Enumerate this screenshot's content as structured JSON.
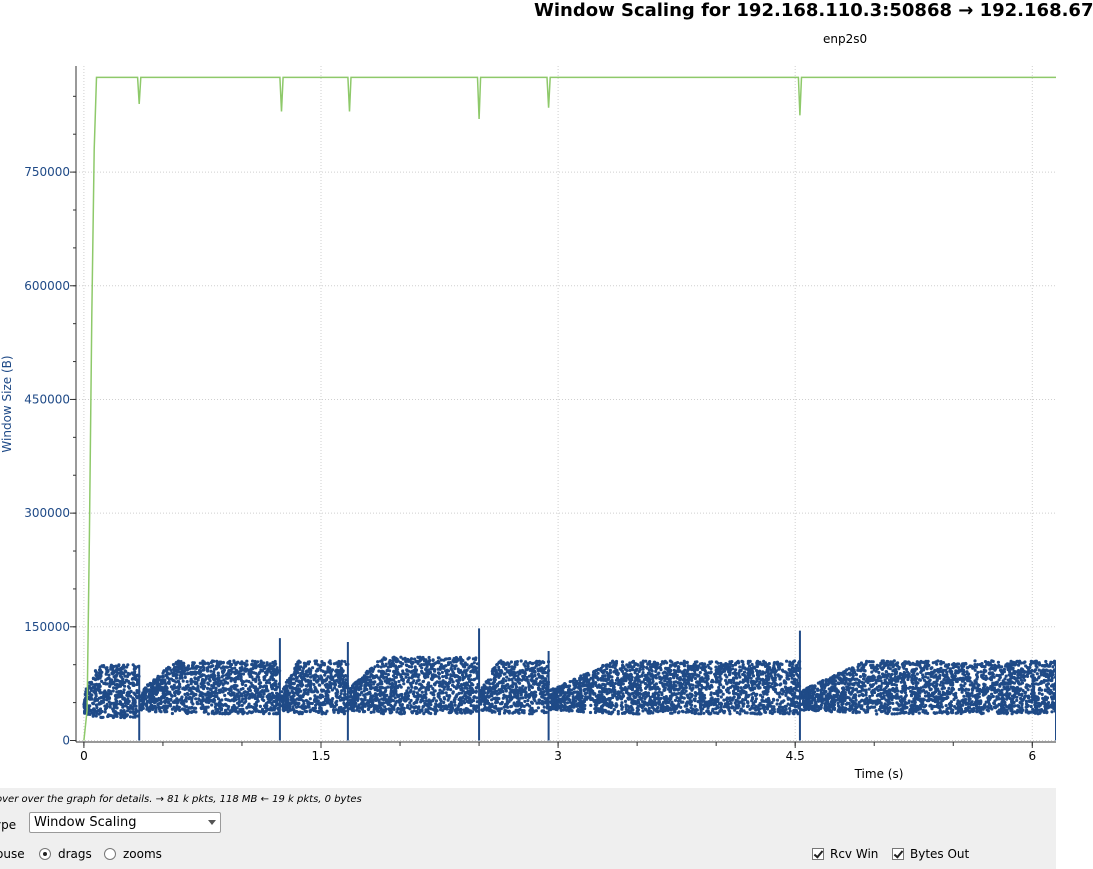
{
  "header": {
    "title": "Window Scaling for 192.168.110.3:50868 → 192.168.67",
    "subtitle": "enp2s0"
  },
  "chart_data": {
    "type": "scatter",
    "title": "Window Scaling for 192.168.110.3:50868 → 192.168.67",
    "subtitle": "enp2s0",
    "xlabel": "Time (s)",
    "ylabel": "Window Size (B)",
    "xlim": [
      -0.05,
      6.15
    ],
    "ylim": [
      -2000,
      890000
    ],
    "x_ticks": [
      0,
      1.5,
      3,
      4.5,
      6
    ],
    "x_tick_labels": [
      "0",
      "1.5",
      "3",
      "4.5",
      "6"
    ],
    "y_ticks": [
      0,
      150000,
      300000,
      450000,
      600000,
      750000
    ],
    "y_tick_labels": [
      "0",
      "150000",
      "300000",
      "450000",
      "600000",
      "750000"
    ],
    "grid": true,
    "series": [
      {
        "name": "Rcv Win",
        "style": "line",
        "color": "#8ec96a",
        "points": [
          [
            0,
            0
          ],
          [
            0.02,
            40000
          ],
          [
            0.035,
            270000
          ],
          [
            0.05,
            560000
          ],
          [
            0.065,
            780000
          ],
          [
            0.08,
            875000
          ],
          [
            0.34,
            875000
          ],
          [
            0.35,
            840000
          ],
          [
            0.36,
            875000
          ],
          [
            1.24,
            875000
          ],
          [
            1.25,
            830000
          ],
          [
            1.26,
            875000
          ],
          [
            1.67,
            875000
          ],
          [
            1.68,
            830000
          ],
          [
            1.69,
            875000
          ],
          [
            2.49,
            875000
          ],
          [
            2.5,
            820000
          ],
          [
            2.51,
            875000
          ],
          [
            2.93,
            875000
          ],
          [
            2.94,
            835000
          ],
          [
            2.95,
            875000
          ],
          [
            4.52,
            875000
          ],
          [
            4.53,
            825000
          ],
          [
            4.54,
            875000
          ],
          [
            6.15,
            875000
          ]
        ]
      },
      {
        "name": "Bytes Out",
        "style": "scatter",
        "color": "#1f4a87",
        "segments": [
          {
            "x_start": 0.0,
            "x_end": 0.35,
            "y_min": 30000,
            "y_max": 100000,
            "spike": 100000
          },
          {
            "x_start": 0.36,
            "x_end": 1.24,
            "y_min": 35000,
            "y_max": 105000,
            "spike": 135000
          },
          {
            "x_start": 1.25,
            "x_end": 1.67,
            "y_min": 35000,
            "y_max": 105000,
            "spike": 130000
          },
          {
            "x_start": 1.68,
            "x_end": 2.5,
            "y_min": 35000,
            "y_max": 110000,
            "spike": 148000
          },
          {
            "x_start": 2.51,
            "x_end": 2.94,
            "y_min": 35000,
            "y_max": 105000,
            "spike": 118000
          },
          {
            "x_start": 2.95,
            "x_end": 4.53,
            "y_min": 35000,
            "y_max": 105000,
            "spike": 145000
          },
          {
            "x_start": 4.54,
            "x_end": 6.15,
            "y_min": 35000,
            "y_max": 105000,
            "spike": 105000
          }
        ]
      }
    ]
  },
  "controls": {
    "hint": "over over the graph for details. → 81 k pkts, 118 MB ← 19 k pkts, 0 bytes",
    "type_label": "ype",
    "type_value": "Window Scaling",
    "mouse_label": "ouse",
    "mouse_drags": "drags",
    "mouse_zooms": "zooms",
    "rcv_win": "Rcv Win",
    "bytes_out": "Bytes Out"
  }
}
